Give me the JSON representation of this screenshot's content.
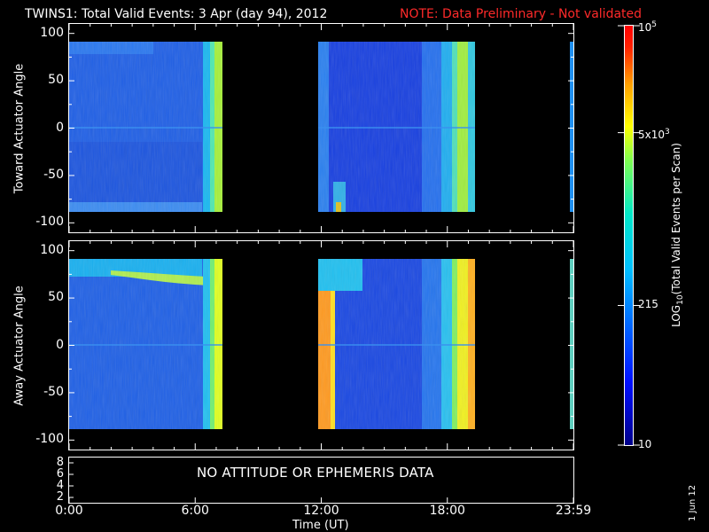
{
  "header": {
    "title": "TWINS1: Total Valid Events:  3 Apr (day  94), 2012",
    "note": "NOTE: Data Preliminary - Not validated",
    "note_color": "#ff2a2a"
  },
  "date_stamp": "1 Jun 12",
  "attitude_panel": {
    "message": "NO ATTITUDE OR EPHEMERIS DATA",
    "y_ticks": [
      "8",
      "6",
      "4",
      "2"
    ]
  },
  "chart_data": [
    {
      "type": "heatmap",
      "ylabel": "Toward Actuator Angle",
      "ylim": [
        -110,
        110
      ],
      "y_ticks": [
        100,
        50,
        0,
        -50,
        -100
      ],
      "x_ticks": [
        "0:00",
        "6:00",
        "12:00",
        "18:00",
        "23:59"
      ],
      "data_blocks": [
        {
          "start": "0:00",
          "end": "7:18",
          "y_range": [
            -88,
            90
          ],
          "dominant_level": "215-1000"
        },
        {
          "start": "11:50",
          "end": "19:20",
          "y_range": [
            -88,
            90
          ],
          "dominant_level": "215-1000"
        }
      ],
      "gaps": [
        {
          "start": "7:18",
          "end": "11:50"
        },
        {
          "start": "19:20",
          "end": "23:59"
        }
      ]
    },
    {
      "type": "heatmap",
      "ylabel": "Away Actuator Angle",
      "ylim": [
        -110,
        110
      ],
      "y_ticks": [
        100,
        50,
        0,
        -50,
        -100
      ],
      "x_ticks": [
        "0:00",
        "6:00",
        "12:00",
        "18:00",
        "23:59"
      ],
      "data_blocks": [
        {
          "start": "0:00",
          "end": "7:18",
          "y_range": [
            -90,
            90
          ],
          "dominant_level": "215-1000"
        },
        {
          "start": "11:50",
          "end": "19:20",
          "y_range": [
            -90,
            90
          ],
          "dominant_level": "215-5000"
        }
      ],
      "gaps": [
        {
          "start": "7:18",
          "end": "11:50"
        },
        {
          "start": "19:20",
          "end": "23:59"
        }
      ]
    }
  ],
  "colorbar": {
    "label": "LOG10(Total Valid Events per Scan)",
    "label_parts": {
      "pre": "LOG",
      "sub": "10",
      "post": "(Total Valid Events per Scan)"
    },
    "ticks": [
      {
        "text": "10",
        "mantissa": "",
        "base": "10",
        "exp": "",
        "frac": 0.0
      },
      {
        "text": "215",
        "mantissa": "",
        "base": "215",
        "exp": "",
        "frac": 0.333
      },
      {
        "text": "5x10^3",
        "mantissa": "5x",
        "base": "10",
        "exp": "3",
        "frac": 0.745
      },
      {
        "text": "10^5",
        "mantissa": "",
        "base": "10",
        "exp": "5",
        "frac": 1.0
      }
    ],
    "colormap": [
      "#00008b",
      "#0000ff",
      "#0066ff",
      "#00bfff",
      "#00e5c8",
      "#7cff5a",
      "#ffff00",
      "#ff9900",
      "#ff2200",
      "#ff0000"
    ]
  },
  "x_axis": {
    "label": "Time (UT)",
    "ticks": [
      "0:00",
      "6:00",
      "12:00",
      "18:00",
      "23:59"
    ]
  }
}
